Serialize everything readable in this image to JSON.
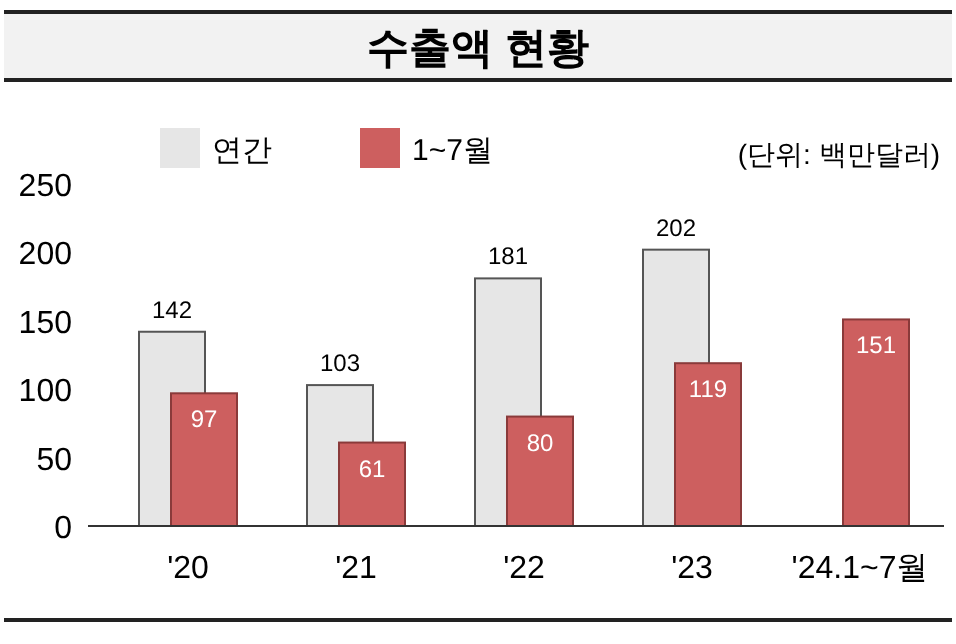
{
  "chart_data": {
    "type": "bar",
    "title": "수출액 현황",
    "categories": [
      "'20",
      "'21",
      "'22",
      "'23",
      "'24.1~7월"
    ],
    "series": [
      {
        "name": "연간",
        "color": "#e6e6e6",
        "values": [
          142,
          103,
          181,
          202,
          null
        ]
      },
      {
        "name": "1~7월",
        "color": "#cd5f5f",
        "values": [
          97,
          61,
          80,
          119,
          151
        ]
      }
    ],
    "ylim": [
      0,
      250
    ],
    "yticks": [
      0,
      50,
      100,
      150,
      200,
      250
    ],
    "data_labels": true,
    "legend": "top left",
    "annotations": [
      "(단위: 백만달러)"
    ]
  }
}
